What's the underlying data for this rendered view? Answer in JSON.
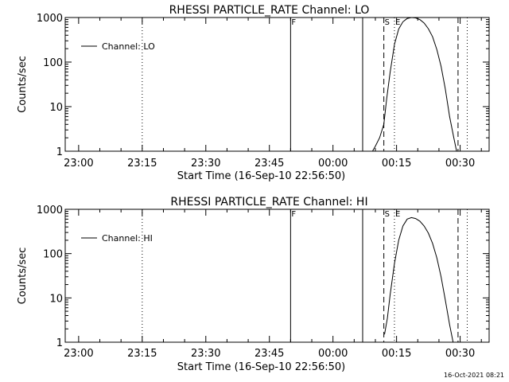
{
  "footer": {
    "timestamp": "16-Oct-2021 08:21"
  },
  "chart_data": [
    {
      "type": "line",
      "title": "RHESSI PARTICLE_RATE Channel: LO",
      "xlabel": "Start Time (16-Sep-10 22:56:50)",
      "ylabel": "Counts/sec",
      "y_scale": "log",
      "ylim": [
        1,
        1000
      ],
      "xlim": [
        "22:56:50",
        "00:36:50"
      ],
      "x_ticks": [
        "23:00",
        "23:15",
        "23:30",
        "23:45",
        "00:00",
        "00:15",
        "00:30"
      ],
      "y_ticks": [
        "1",
        "10",
        "100",
        "1000"
      ],
      "legend": {
        "entries": [
          "Channel: LO"
        ],
        "position": "top-left"
      },
      "markers": [
        {
          "time": "23:15",
          "style": "dotted",
          "label": ""
        },
        {
          "time": "23:50",
          "style": "solid",
          "label": "F"
        },
        {
          "time": "00:07",
          "style": "solid",
          "label": ""
        },
        {
          "time": "00:12",
          "style": "dashed",
          "label": "S"
        },
        {
          "time": "00:14:30",
          "style": "dotted",
          "label": "E"
        },
        {
          "time": "00:29:30",
          "style": "dashed",
          "label": ""
        },
        {
          "time": "00:31:40",
          "style": "dotted",
          "label": ""
        }
      ],
      "series": [
        {
          "name": "Channel: LO",
          "x": [
            "00:09:20",
            "00:10:00",
            "00:11:00",
            "00:12:00",
            "00:12:40",
            "00:13:30",
            "00:14:30",
            "00:15:30",
            "00:16:30",
            "00:17:30",
            "00:18:30",
            "00:19:30",
            "00:20:30",
            "00:21:30",
            "00:22:30",
            "00:23:30",
            "00:24:30",
            "00:25:30",
            "00:26:30",
            "00:27:30",
            "00:28:30",
            "00:29:10"
          ],
          "values": [
            1,
            1.3,
            2,
            4,
            15,
            60,
            250,
            550,
            800,
            950,
            1000,
            980,
            900,
            750,
            560,
            370,
            190,
            80,
            25,
            6,
            2,
            1
          ]
        }
      ]
    },
    {
      "type": "line",
      "title": "RHESSI PARTICLE_RATE Channel: HI",
      "xlabel": "Start Time (16-Sep-10 22:56:50)",
      "ylabel": "Counts/sec",
      "y_scale": "log",
      "ylim": [
        1,
        1000
      ],
      "xlim": [
        "22:56:50",
        "00:36:50"
      ],
      "x_ticks": [
        "23:00",
        "23:15",
        "23:30",
        "23:45",
        "00:00",
        "00:15",
        "00:30"
      ],
      "y_ticks": [
        "1",
        "10",
        "100",
        "1000"
      ],
      "legend": {
        "entries": [
          "Channel: HI"
        ],
        "position": "top-left"
      },
      "markers": [
        {
          "time": "23:15",
          "style": "dotted",
          "label": ""
        },
        {
          "time": "23:50",
          "style": "solid",
          "label": "F"
        },
        {
          "time": "00:07",
          "style": "solid",
          "label": ""
        },
        {
          "time": "00:12",
          "style": "dashed",
          "label": "S"
        },
        {
          "time": "00:14:30",
          "style": "dotted",
          "label": "E"
        },
        {
          "time": "00:29:30",
          "style": "dashed",
          "label": ""
        },
        {
          "time": "00:31:40",
          "style": "dotted",
          "label": ""
        }
      ],
      "series": [
        {
          "name": "Channel: HI",
          "x": [
            "00:12:10",
            "00:12:50",
            "00:13:30",
            "00:14:30",
            "00:15:30",
            "00:16:30",
            "00:17:30",
            "00:18:30",
            "00:19:30",
            "00:20:30",
            "00:21:30",
            "00:22:30",
            "00:23:30",
            "00:24:30",
            "00:25:30",
            "00:26:30",
            "00:27:30",
            "00:28:20"
          ],
          "values": [
            1.5,
            3.5,
            12,
            60,
            200,
            420,
            600,
            650,
            620,
            540,
            420,
            290,
            170,
            80,
            30,
            9,
            2.5,
            1
          ]
        }
      ]
    }
  ]
}
